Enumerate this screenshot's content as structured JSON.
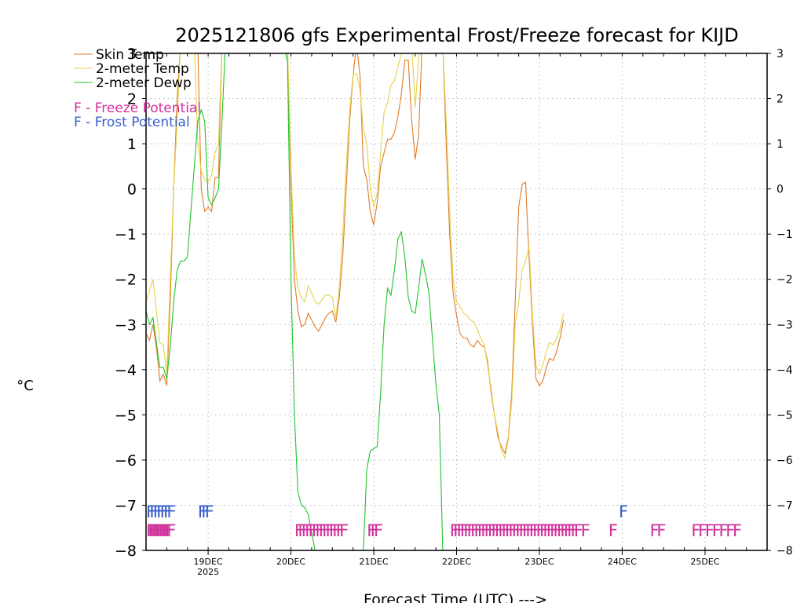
{
  "chart_data": {
    "type": "line",
    "title": "2025121806 gfs Experimental Frost/Freeze forecast for KIJD",
    "xlabel": "Forecast Time (UTC) --->",
    "ylabel": "°C",
    "ylim": [
      -8,
      3
    ],
    "xlim": [
      0,
      180
    ],
    "grid": true,
    "legend_position": "top-left",
    "y_ticks": [
      -8,
      -7,
      -6,
      -5,
      -4,
      -3,
      -2,
      -1,
      0,
      1,
      2,
      3
    ],
    "y_tick_labels": [
      "−8",
      "−7",
      "−6",
      "−5",
      "−4",
      "−3",
      "−2",
      "−1",
      "0",
      "1",
      "2",
      "3"
    ],
    "x_ticks": [
      {
        "hour": 18,
        "label": "19DEC",
        "sublabel": "2025"
      },
      {
        "hour": 42,
        "label": "20DEC",
        "sublabel": ""
      },
      {
        "hour": 66,
        "label": "21DEC",
        "sublabel": ""
      },
      {
        "hour": 90,
        "label": "22DEC",
        "sublabel": ""
      },
      {
        "hour": 114,
        "label": "23DEC",
        "sublabel": ""
      },
      {
        "hour": 138,
        "label": "24DEC",
        "sublabel": ""
      },
      {
        "hour": 162,
        "label": "25DEC",
        "sublabel": ""
      }
    ],
    "series": [
      {
        "name": "Skin Temp",
        "color": "#e07b28",
        "points": [
          [
            0,
            -3.2
          ],
          [
            1,
            -3.35
          ],
          [
            2,
            -3.0
          ],
          [
            3,
            -3.5
          ],
          [
            4,
            -4.25
          ],
          [
            5,
            -4.1
          ],
          [
            6,
            -4.35
          ],
          [
            7,
            -2.5
          ],
          [
            8,
            0
          ],
          [
            9,
            2
          ],
          [
            10,
            3.2
          ],
          [
            15,
            3.2
          ],
          [
            16,
            0
          ],
          [
            17,
            -0.5
          ],
          [
            18,
            -0.4
          ],
          [
            19,
            -0.5
          ],
          [
            20,
            0.25
          ],
          [
            21,
            0.25
          ],
          [
            22,
            3.2
          ],
          [
            40,
            3.2
          ],
          [
            41,
            3.0
          ],
          [
            42,
            0
          ],
          [
            43,
            -2.0
          ],
          [
            44,
            -2.7
          ],
          [
            45,
            -3.05
          ],
          [
            46,
            -3.0
          ],
          [
            47,
            -2.75
          ],
          [
            48,
            -2.9
          ],
          [
            49,
            -3.05
          ],
          [
            50,
            -3.15
          ],
          [
            51,
            -3.0
          ],
          [
            52,
            -2.85
          ],
          [
            53,
            -2.75
          ],
          [
            54,
            -2.7
          ],
          [
            55,
            -2.95
          ],
          [
            56,
            -2.4
          ],
          [
            57,
            -1.5
          ],
          [
            58,
            0
          ],
          [
            59,
            1.5
          ],
          [
            60,
            2.5
          ],
          [
            61,
            3.2
          ],
          [
            62,
            2.5
          ],
          [
            63,
            0.5
          ],
          [
            64,
            0.2
          ],
          [
            65,
            -0.5
          ],
          [
            66,
            -0.8
          ],
          [
            67,
            -0.3
          ],
          [
            68,
            0.5
          ],
          [
            69,
            0.8
          ],
          [
            70,
            1.1
          ],
          [
            71,
            1.1
          ],
          [
            72,
            1.25
          ],
          [
            73,
            1.6
          ],
          [
            74,
            2.1
          ],
          [
            75,
            2.85
          ],
          [
            76,
            2.85
          ],
          [
            77,
            1.5
          ],
          [
            78,
            0.65
          ],
          [
            79,
            1.2
          ],
          [
            80,
            3.2
          ],
          [
            86,
            3.2
          ],
          [
            87,
            1.0
          ],
          [
            88,
            -1.0
          ],
          [
            89,
            -2.3
          ],
          [
            90,
            -2.8
          ],
          [
            91,
            -3.2
          ],
          [
            92,
            -3.3
          ],
          [
            93,
            -3.3
          ],
          [
            94,
            -3.45
          ],
          [
            95,
            -3.5
          ],
          [
            96,
            -3.35
          ],
          [
            97,
            -3.45
          ],
          [
            98,
            -3.5
          ],
          [
            99,
            -3.8
          ],
          [
            100,
            -4.5
          ],
          [
            101,
            -5.0
          ],
          [
            102,
            -5.5
          ],
          [
            103,
            -5.7
          ],
          [
            104,
            -5.85
          ],
          [
            105,
            -5.5
          ],
          [
            106,
            -4.5
          ],
          [
            107,
            -2.5
          ],
          [
            108,
            -0.4
          ],
          [
            109,
            0.1
          ],
          [
            110,
            0.15
          ],
          [
            111,
            -1.5
          ],
          [
            112,
            -3.0
          ],
          [
            113,
            -4.2
          ],
          [
            114,
            -4.35
          ],
          [
            115,
            -4.25
          ],
          [
            116,
            -3.95
          ],
          [
            117,
            -3.75
          ],
          [
            118,
            -3.8
          ],
          [
            119,
            -3.6
          ],
          [
            120,
            -3.3
          ],
          [
            121,
            -2.9
          ]
        ]
      },
      {
        "name": "2-meter Temp",
        "color": "#e4d34a",
        "points": [
          [
            0,
            -2.5
          ],
          [
            1,
            -2.25
          ],
          [
            2,
            -2.0
          ],
          [
            3,
            -2.7
          ],
          [
            4,
            -3.4
          ],
          [
            5,
            -3.45
          ],
          [
            6,
            -4.1
          ],
          [
            7,
            -2.0
          ],
          [
            8,
            0
          ],
          [
            9,
            1.5
          ],
          [
            10,
            3.2
          ],
          [
            14,
            3.2
          ],
          [
            15,
            1.0
          ],
          [
            16,
            0.4
          ],
          [
            17,
            0.2
          ],
          [
            18,
            0.15
          ],
          [
            19,
            0.3
          ],
          [
            20,
            0.8
          ],
          [
            21,
            1.0
          ],
          [
            22,
            3.2
          ],
          [
            41,
            3.2
          ],
          [
            42,
            0.5
          ],
          [
            43,
            -1.5
          ],
          [
            44,
            -2.2
          ],
          [
            45,
            -2.4
          ],
          [
            46,
            -2.5
          ],
          [
            47,
            -2.15
          ],
          [
            48,
            -2.3
          ],
          [
            49,
            -2.5
          ],
          [
            50,
            -2.55
          ],
          [
            51,
            -2.45
          ],
          [
            52,
            -2.35
          ],
          [
            53,
            -2.35
          ],
          [
            54,
            -2.4
          ],
          [
            55,
            -2.85
          ],
          [
            56,
            -2.2
          ],
          [
            57,
            -1.0
          ],
          [
            58,
            0.5
          ],
          [
            59,
            1.7
          ],
          [
            60,
            2.55
          ],
          [
            61,
            2.55
          ],
          [
            62,
            2.2
          ],
          [
            63,
            1.3
          ],
          [
            64,
            1.0
          ],
          [
            65,
            0
          ],
          [
            66,
            -0.4
          ],
          [
            67,
            -0.1
          ],
          [
            68,
            0.8
          ],
          [
            69,
            1.7
          ],
          [
            70,
            1.9
          ],
          [
            71,
            2.3
          ],
          [
            72,
            2.4
          ],
          [
            73,
            2.7
          ],
          [
            74,
            3.0
          ],
          [
            75,
            3.2
          ],
          [
            77,
            3.2
          ],
          [
            78,
            1.8
          ],
          [
            79,
            2.9
          ],
          [
            80,
            3.2
          ],
          [
            86,
            3.2
          ],
          [
            87,
            1.5
          ],
          [
            88,
            -0.5
          ],
          [
            89,
            -2.0
          ],
          [
            90,
            -2.5
          ],
          [
            91,
            -2.6
          ],
          [
            92,
            -2.75
          ],
          [
            93,
            -2.8
          ],
          [
            94,
            -2.9
          ],
          [
            95,
            -2.95
          ],
          [
            96,
            -3.1
          ],
          [
            97,
            -3.3
          ],
          [
            98,
            -3.45
          ],
          [
            99,
            -3.9
          ],
          [
            100,
            -4.4
          ],
          [
            101,
            -5.0
          ],
          [
            102,
            -5.4
          ],
          [
            103,
            -5.8
          ],
          [
            104,
            -5.95
          ],
          [
            105,
            -5.55
          ],
          [
            106,
            -4.7
          ],
          [
            107,
            -3.0
          ],
          [
            108,
            -2.5
          ],
          [
            109,
            -1.8
          ],
          [
            110,
            -1.6
          ],
          [
            111,
            -1.25
          ],
          [
            112,
            -2.8
          ],
          [
            113,
            -3.9
          ],
          [
            114,
            -4.1
          ],
          [
            115,
            -3.9
          ],
          [
            116,
            -3.6
          ],
          [
            117,
            -3.4
          ],
          [
            118,
            -3.45
          ],
          [
            119,
            -3.3
          ],
          [
            120,
            -3.1
          ],
          [
            121,
            -2.75
          ]
        ]
      },
      {
        "name": "2-meter Dewp",
        "color": "#22c32a",
        "points": [
          [
            0,
            -2.7
          ],
          [
            1,
            -3.0
          ],
          [
            2,
            -2.85
          ],
          [
            3,
            -3.4
          ],
          [
            4,
            -3.95
          ],
          [
            5,
            -3.95
          ],
          [
            6,
            -4.2
          ],
          [
            7,
            -3.5
          ],
          [
            8,
            -2.5
          ],
          [
            9,
            -1.8
          ],
          [
            10,
            -1.6
          ],
          [
            11,
            -1.6
          ],
          [
            12,
            -1.5
          ],
          [
            13,
            -0.5
          ],
          [
            14,
            0.5
          ],
          [
            15,
            1.5
          ],
          [
            16,
            1.75
          ],
          [
            17,
            1.5
          ],
          [
            18,
            -0.2
          ],
          [
            19,
            -0.35
          ],
          [
            20,
            -0.2
          ],
          [
            21,
            0
          ],
          [
            22,
            1.5
          ],
          [
            23,
            3.2
          ],
          [
            40,
            3.2
          ],
          [
            41,
            2.8
          ],
          [
            42,
            -2.0
          ],
          [
            43,
            -5.0
          ],
          [
            44,
            -6.7
          ],
          [
            45,
            -7.0
          ],
          [
            46,
            -7.05
          ],
          [
            47,
            -7.2
          ],
          [
            48,
            -7.6
          ],
          [
            49,
            -8.0
          ],
          [
            63,
            -8.0
          ],
          [
            64,
            -6.2
          ],
          [
            65,
            -5.8
          ],
          [
            66,
            -5.75
          ],
          [
            67,
            -5.7
          ],
          [
            68,
            -4.5
          ],
          [
            69,
            -3.0
          ],
          [
            70,
            -2.2
          ],
          [
            71,
            -2.35
          ],
          [
            72,
            -1.8
          ],
          [
            73,
            -1.1
          ],
          [
            74,
            -0.95
          ],
          [
            75,
            -1.5
          ],
          [
            76,
            -2.4
          ],
          [
            77,
            -2.7
          ],
          [
            78,
            -2.75
          ],
          [
            79,
            -2.2
          ],
          [
            80,
            -1.55
          ],
          [
            81,
            -1.9
          ],
          [
            82,
            -2.3
          ],
          [
            83,
            -3.3
          ],
          [
            84,
            -4.3
          ],
          [
            85,
            -5.0
          ],
          [
            86,
            -8.0
          ]
        ]
      }
    ],
    "freeze_potential": {
      "label": "F - Freeze Potential",
      "color": "#d0309a",
      "glyph": "F",
      "hours": [
        0,
        0.5,
        1,
        1.5,
        2,
        2.5,
        3,
        3.5,
        4,
        4.5,
        5,
        5.5,
        6,
        43,
        44,
        45,
        46,
        47,
        48,
        49,
        50,
        51,
        52,
        53,
        54,
        55,
        56,
        64,
        65,
        66,
        88,
        89,
        90,
        91,
        92,
        93,
        94,
        95,
        96,
        97,
        98,
        99,
        100,
        101,
        102,
        103,
        104,
        105,
        106,
        107,
        108,
        109,
        110,
        111,
        112,
        113,
        114,
        115,
        116,
        117,
        118,
        119,
        120,
        121,
        122,
        123,
        124,
        126,
        134,
        146,
        148,
        158,
        160,
        162,
        164,
        166,
        168,
        170
      ]
    },
    "frost_potential": {
      "label": "F - Frost Potential",
      "color": "#3a5fcd",
      "glyph": "F",
      "hours": [
        0,
        1,
        2,
        3,
        4,
        5,
        6,
        15,
        16,
        17,
        137
      ]
    }
  }
}
